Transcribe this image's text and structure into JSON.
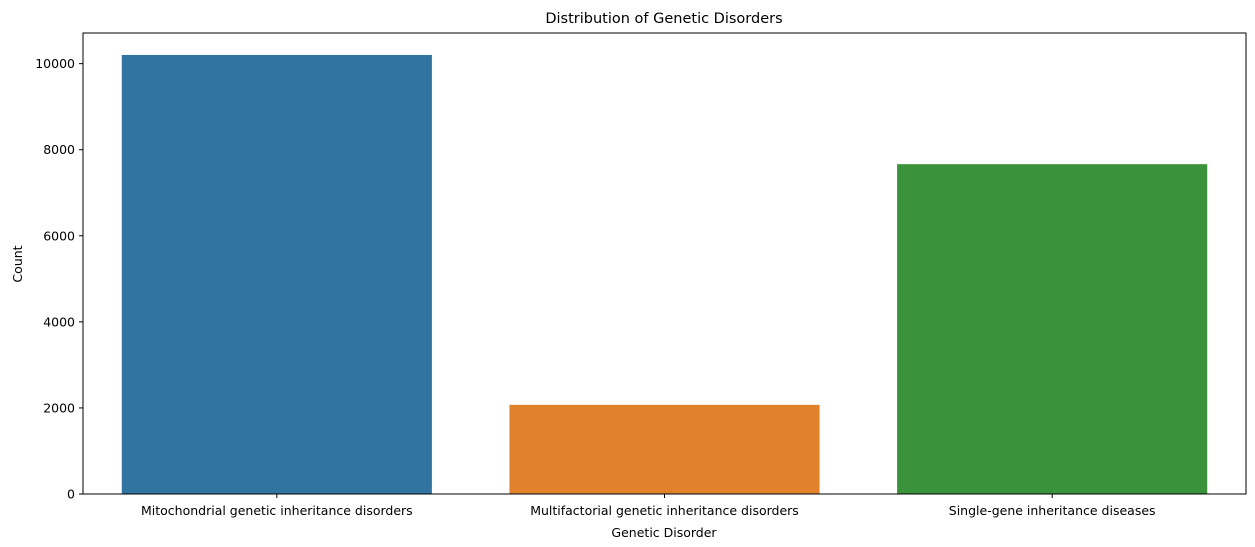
{
  "chart_data": {
    "type": "bar",
    "title": "Distribution of Genetic Disorders",
    "xlabel": "Genetic Disorder",
    "ylabel": "Count",
    "categories": [
      "Mitochondrial genetic inheritance disorders",
      "Multifactorial genetic inheritance disorders",
      "Single-gene inheritance diseases"
    ],
    "values": [
      10202,
      2071,
      7664
    ],
    "colors": [
      "#3274a1",
      "#e1812c",
      "#3a923a"
    ],
    "ylim": [
      0,
      10712
    ],
    "yticks": [
      0,
      2000,
      4000,
      6000,
      8000,
      10000
    ],
    "ytick_labels": [
      "0",
      "2000",
      "4000",
      "6000",
      "8000",
      "10000"
    ],
    "grid": false,
    "legend": "none"
  }
}
